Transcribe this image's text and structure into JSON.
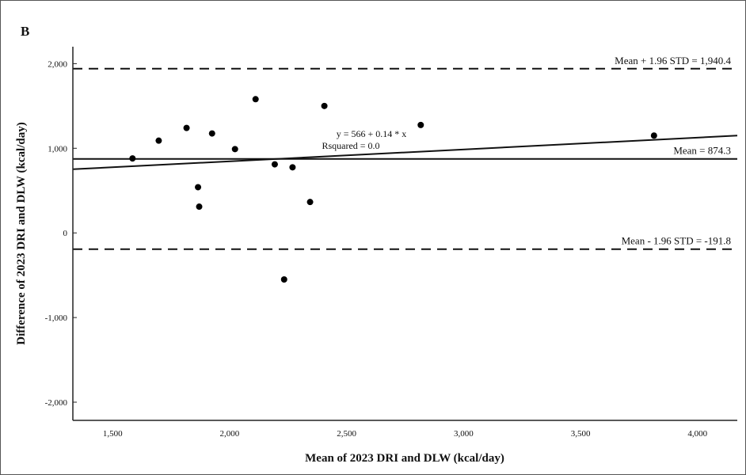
{
  "panel_label": "B",
  "chart_data": {
    "type": "scatter",
    "xlabel": "Mean of 2023 DRI and DLW (kcal/day)",
    "ylabel": "Difference of 2023 DRI and DLW (kcal/day)",
    "xlim": [
      1330,
      4170
    ],
    "ylim": [
      -2215,
      2200
    ],
    "xticks": [
      1500,
      2000,
      2500,
      3000,
      3500,
      4000
    ],
    "xtick_labels": [
      "1,500",
      "2,000",
      "2,500",
      "3,000",
      "3,500",
      "4,000"
    ],
    "yticks": [
      2000,
      1000,
      0,
      -1000,
      -2000
    ],
    "ytick_labels": [
      "2,000",
      "1,000",
      "0",
      "-1,000",
      "-2,000"
    ],
    "grid": false,
    "points": [
      {
        "x": 1585,
        "y": 880
      },
      {
        "x": 1697,
        "y": 1090
      },
      {
        "x": 1816,
        "y": 1240
      },
      {
        "x": 1925,
        "y": 1175
      },
      {
        "x": 1865,
        "y": 540
      },
      {
        "x": 1870,
        "y": 310
      },
      {
        "x": 2023,
        "y": 990
      },
      {
        "x": 2111,
        "y": 1580
      },
      {
        "x": 2193,
        "y": 810
      },
      {
        "x": 2269,
        "y": 775
      },
      {
        "x": 2233,
        "y": -550
      },
      {
        "x": 2344,
        "y": 365
      },
      {
        "x": 2405,
        "y": 1500
      },
      {
        "x": 2817,
        "y": 1275
      },
      {
        "x": 3814,
        "y": 1150
      }
    ],
    "reference_lines": [
      {
        "value": 1940.4,
        "style": "dashed",
        "label": "Mean + 1.96 STD = 1,940.4"
      },
      {
        "value": 874.3,
        "style": "solid",
        "label": "Mean = 874.3"
      },
      {
        "value": -191.8,
        "style": "dashed",
        "label": "Mean - 1.96 STD = -191.8"
      }
    ],
    "regression": {
      "intercept": 566,
      "slope": 0.14,
      "equation_label": "y = 566 + 0.14 * x",
      "r2_label": "Rsquared = 0.0"
    }
  }
}
